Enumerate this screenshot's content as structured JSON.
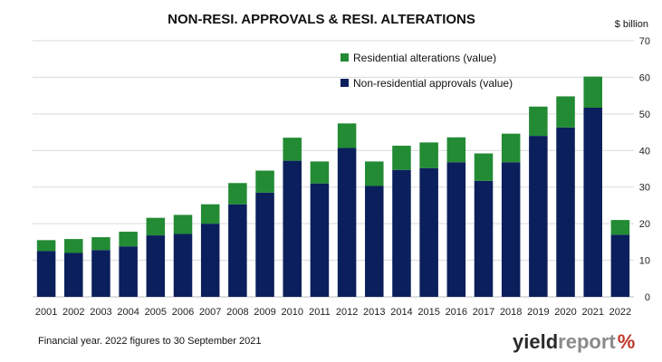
{
  "chart_data": {
    "type": "bar",
    "stacked": true,
    "title": "NON-RESI. APPROVALS & RESI. ALTERATIONS",
    "unit_label": "$ billion",
    "categories": [
      "2001",
      "2002",
      "2003",
      "2004",
      "2005",
      "2006",
      "2007",
      "2008",
      "2009",
      "2010",
      "2011",
      "2012",
      "2013",
      "2014",
      "2015",
      "2016",
      "2017",
      "2018",
      "2019",
      "2020",
      "2021",
      "2022"
    ],
    "series": [
      {
        "name": "Non-residential approvals (value)",
        "color": "#0b1f5c",
        "values": [
          12.5,
          12.0,
          12.8,
          13.8,
          16.8,
          17.2,
          20.0,
          25.3,
          28.5,
          37.2,
          31.0,
          40.7,
          30.3,
          34.7,
          35.2,
          36.8,
          31.7,
          36.8,
          44.0,
          46.3,
          51.7,
          17.0
        ]
      },
      {
        "name": "Residential alterations (value)",
        "color": "#228b34",
        "values": [
          3.0,
          3.8,
          3.5,
          4.0,
          4.8,
          5.2,
          5.3,
          5.8,
          6.0,
          6.3,
          6.0,
          6.7,
          6.7,
          6.6,
          7.0,
          6.8,
          7.5,
          7.8,
          8.0,
          8.5,
          8.5,
          4.0
        ]
      }
    ],
    "ylim": [
      0,
      70
    ],
    "yticks": [
      0,
      10,
      20,
      30,
      40,
      50,
      60,
      70
    ],
    "y_axis_position": "right",
    "grid": true,
    "legend": {
      "placement": "top-center",
      "entries": [
        "Residential alterations (value)",
        "Non-residential approvals (value)"
      ]
    },
    "footnote": "Financial year. 2022 figures to 30 September  2021"
  },
  "branding": {
    "logo_dark": "yield",
    "logo_light": "report",
    "logo_mark": "%"
  }
}
